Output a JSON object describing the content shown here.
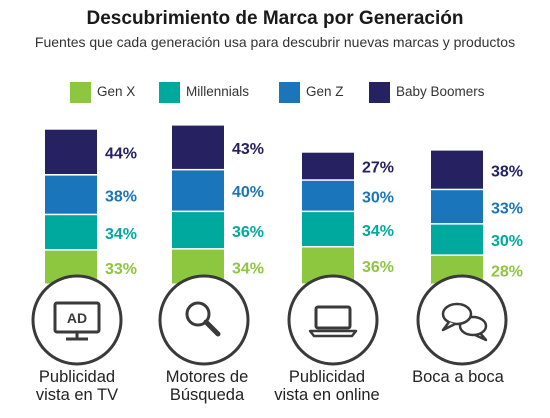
{
  "title": "Descubrimiento de Marca por Generación",
  "subtitle": "Fuentes que cada generación usa para descubrir nuevas marcas y productos",
  "colors": {
    "gen_x": "#8dc63f",
    "millennials": "#00a99d",
    "gen_z": "#1a75bb",
    "baby_boomers": "#262262",
    "circle_stroke": "#3a3a3a"
  },
  "icons": [
    "tv-ad-icon",
    "magnifier-icon",
    "laptop-icon",
    "speech-bubbles-icon"
  ],
  "chart_data": {
    "type": "bar",
    "stacked": true,
    "categories": [
      "Publicidad vista en TV",
      "Motores de Búsqueda",
      "Publicidad vista en online",
      "Boca a boca"
    ],
    "series": [
      {
        "name": "Gen X",
        "values": [
          33,
          34,
          36,
          28
        ],
        "labels": [
          "33%",
          "34%",
          "36%",
          "28%"
        ]
      },
      {
        "name": "Millennials",
        "values": [
          34,
          36,
          34,
          30
        ],
        "labels": [
          "34%",
          "36%",
          "34%",
          "30%"
        ]
      },
      {
        "name": "Gen Z",
        "values": [
          38,
          40,
          30,
          33
        ],
        "labels": [
          "38%",
          "40%",
          "30%",
          "33%"
        ]
      },
      {
        "name": "Baby Boomers",
        "values": [
          44,
          43,
          27,
          38
        ],
        "labels": [
          "44%",
          "43%",
          "27%",
          "38%"
        ]
      }
    ],
    "legend": "top"
  },
  "captions": [
    {
      "line1": "Publicidad",
      "line2": "vista en TV"
    },
    {
      "line1": "Motores de",
      "line2": "Búsqueda"
    },
    {
      "line1": "Publicidad",
      "line2": "vista en online"
    },
    {
      "line1": "Boca a boca",
      "line2": ""
    }
  ],
  "icon_text": {
    "tv": "AD"
  }
}
